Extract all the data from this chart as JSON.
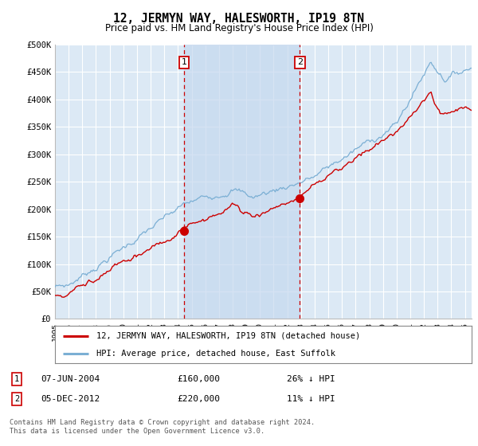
{
  "title": "12, JERMYN WAY, HALESWORTH, IP19 8TN",
  "subtitle": "Price paid vs. HM Land Registry's House Price Index (HPI)",
  "title_fontsize": 10.5,
  "subtitle_fontsize": 8.5,
  "background_color": "#ffffff",
  "plot_bg_color": "#dce9f5",
  "shade_color": "#c5d8ee",
  "grid_color": "#ffffff",
  "hpi_color": "#7bafd4",
  "price_color": "#cc0000",
  "vline_color": "#cc0000",
  "ylim": [
    0,
    500000
  ],
  "yticks": [
    0,
    50000,
    100000,
    150000,
    200000,
    250000,
    300000,
    350000,
    400000,
    450000,
    500000
  ],
  "ytick_labels": [
    "£0",
    "£50K",
    "£100K",
    "£150K",
    "£200K",
    "£250K",
    "£300K",
    "£350K",
    "£400K",
    "£450K",
    "£500K"
  ],
  "sale1_date_num": 2004.44,
  "sale1_price": 160000,
  "sale1_label": "1",
  "sale1_date_str": "07-JUN-2004",
  "sale1_price_str": "£160,000",
  "sale1_pct": "26% ↓ HPI",
  "sale2_date_num": 2012.92,
  "sale2_price": 220000,
  "sale2_label": "2",
  "sale2_date_str": "05-DEC-2012",
  "sale2_price_str": "£220,000",
  "sale2_pct": "11% ↓ HPI",
  "legend_price_label": "12, JERMYN WAY, HALESWORTH, IP19 8TN (detached house)",
  "legend_hpi_label": "HPI: Average price, detached house, East Suffolk",
  "footnote": "Contains HM Land Registry data © Crown copyright and database right 2024.\nThis data is licensed under the Open Government Licence v3.0.",
  "xmin": 1995,
  "xmax": 2025.5,
  "n_points": 370
}
